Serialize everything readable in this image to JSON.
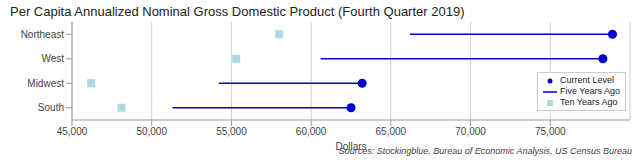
{
  "chart_data": {
    "type": "dumbbell",
    "title": "Per Capita Annualized Nominal Gross Domestic Product (Fourth Quarter 2019)",
    "x_label": "Dollars",
    "source": "Sources: Stockingblue, Bureau of Economic Analysis, US Census Bureau",
    "orientation": "horizontal",
    "categories": [
      "Northeast",
      "West",
      "Midwest",
      "South"
    ],
    "series": [
      {
        "name": "Current Level",
        "type": "scatter",
        "marker": "circle",
        "color": "#0000cc",
        "values": [
          78900,
          78300,
          63200,
          62500
        ]
      },
      {
        "name": "Five Years Ago",
        "type": "line",
        "line_style": "solid",
        "color": "#0000cc",
        "values": [
          66200,
          60600,
          54200,
          51300
        ]
      },
      {
        "name": "Ten Years Ago",
        "type": "scatter",
        "marker": "square",
        "color": "#a8dce0",
        "values": [
          58000,
          55300,
          46200,
          48100
        ]
      }
    ],
    "xlim": [
      45000,
      80000
    ],
    "xticks": [
      {
        "value": 45000,
        "label": "45,000"
      },
      {
        "value": 50000,
        "label": "50,000"
      },
      {
        "value": 55000,
        "label": "55,000"
      },
      {
        "value": 60000,
        "label": "60,000"
      },
      {
        "value": 65000,
        "label": "65,000"
      },
      {
        "value": 70000,
        "label": "70,000"
      },
      {
        "value": 75000,
        "label": "75,000"
      }
    ],
    "grid": true,
    "legend": "lower right"
  }
}
